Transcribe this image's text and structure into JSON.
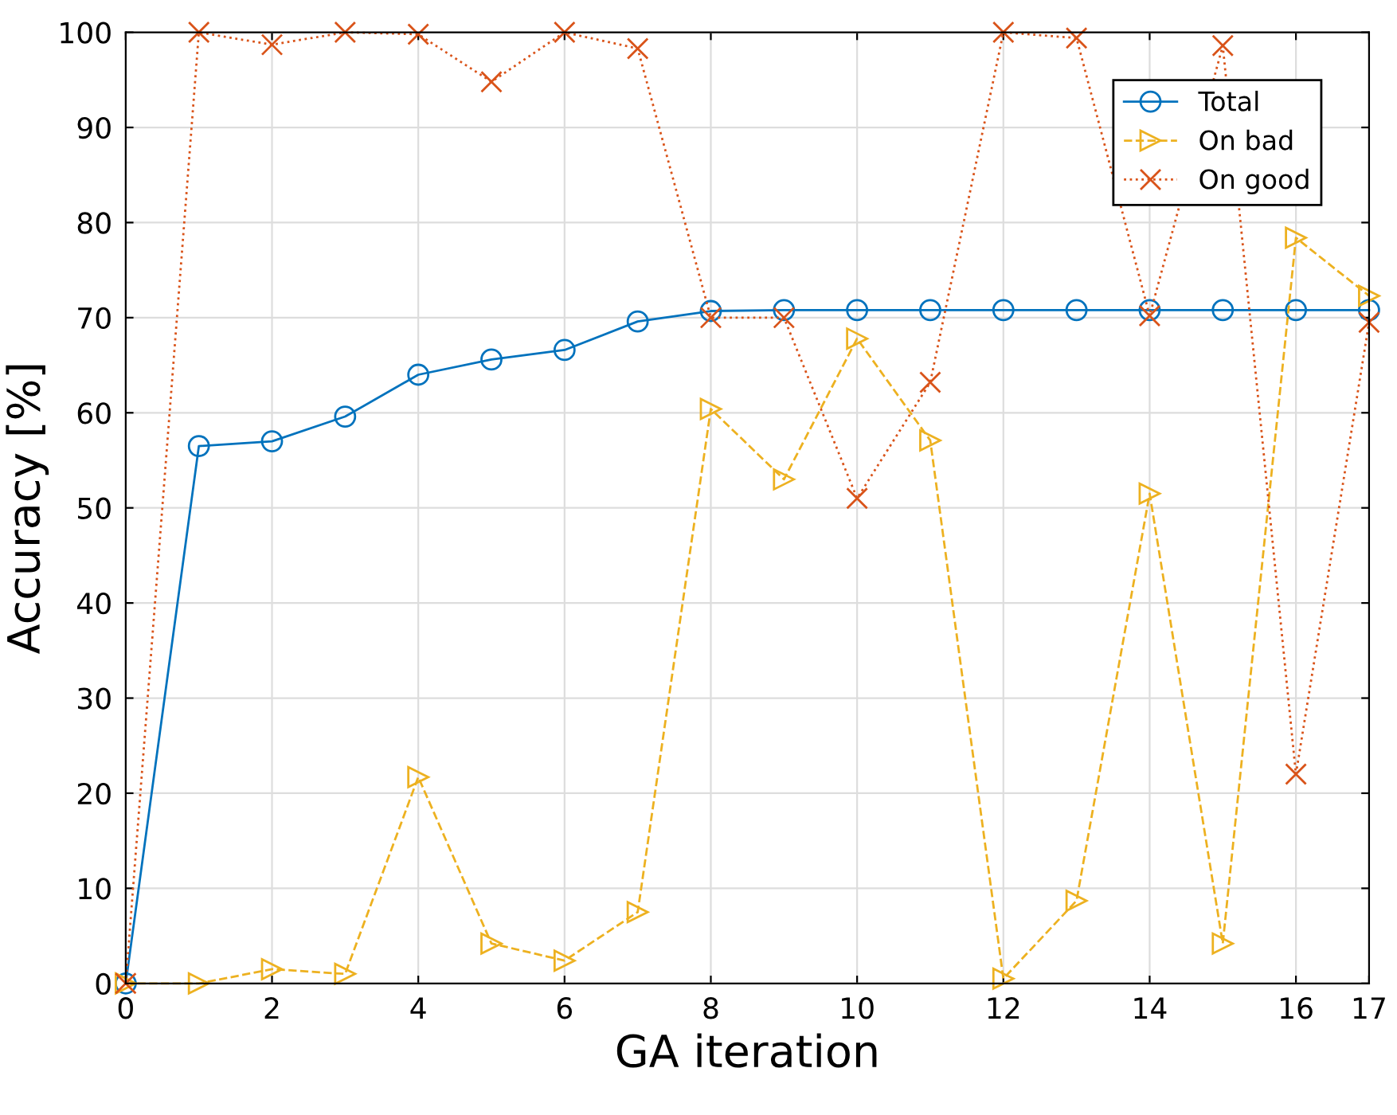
{
  "chart_data": {
    "type": "line",
    "xlabel": "GA iteration",
    "ylabel": "Accuracy [%]",
    "x": [
      0,
      1,
      2,
      3,
      4,
      5,
      6,
      7,
      8,
      9,
      10,
      11,
      12,
      13,
      14,
      15,
      16,
      17
    ],
    "series": [
      {
        "name": "Total",
        "color": "#0072bd",
        "marker": "circle",
        "line_style": "solid",
        "values": [
          0,
          56.5,
          57,
          59.6,
          64,
          65.6,
          66.6,
          69.6,
          70.7,
          70.8,
          70.8,
          70.8,
          70.8,
          70.8,
          70.8,
          70.8,
          70.8,
          70.8
        ]
      },
      {
        "name": "On bad",
        "color": "#edb120",
        "marker": "triangle",
        "line_style": "dashed",
        "values": [
          0,
          0,
          1.5,
          1,
          21.7,
          4.2,
          2.4,
          7.5,
          60.4,
          53,
          67.8,
          57.1,
          0.5,
          8.7,
          51.5,
          4.2,
          78.4,
          72.3
        ]
      },
      {
        "name": "On good",
        "color": "#d95319",
        "marker": "cross",
        "line_style": "dotted",
        "values": [
          0,
          100,
          98.7,
          100,
          99.8,
          94.8,
          100,
          98.3,
          70,
          70,
          51,
          63.2,
          100,
          99.4,
          70.2,
          98.6,
          22,
          69.5
        ]
      }
    ],
    "xlim": [
      0,
      17
    ],
    "xticks": [
      0,
      2,
      4,
      6,
      8,
      10,
      12,
      14,
      16,
      17
    ],
    "ylim": [
      0,
      100
    ],
    "yticks": [
      0,
      10,
      20,
      30,
      40,
      50,
      60,
      70,
      80,
      90,
      100
    ],
    "grid": true,
    "legend": "top right"
  }
}
